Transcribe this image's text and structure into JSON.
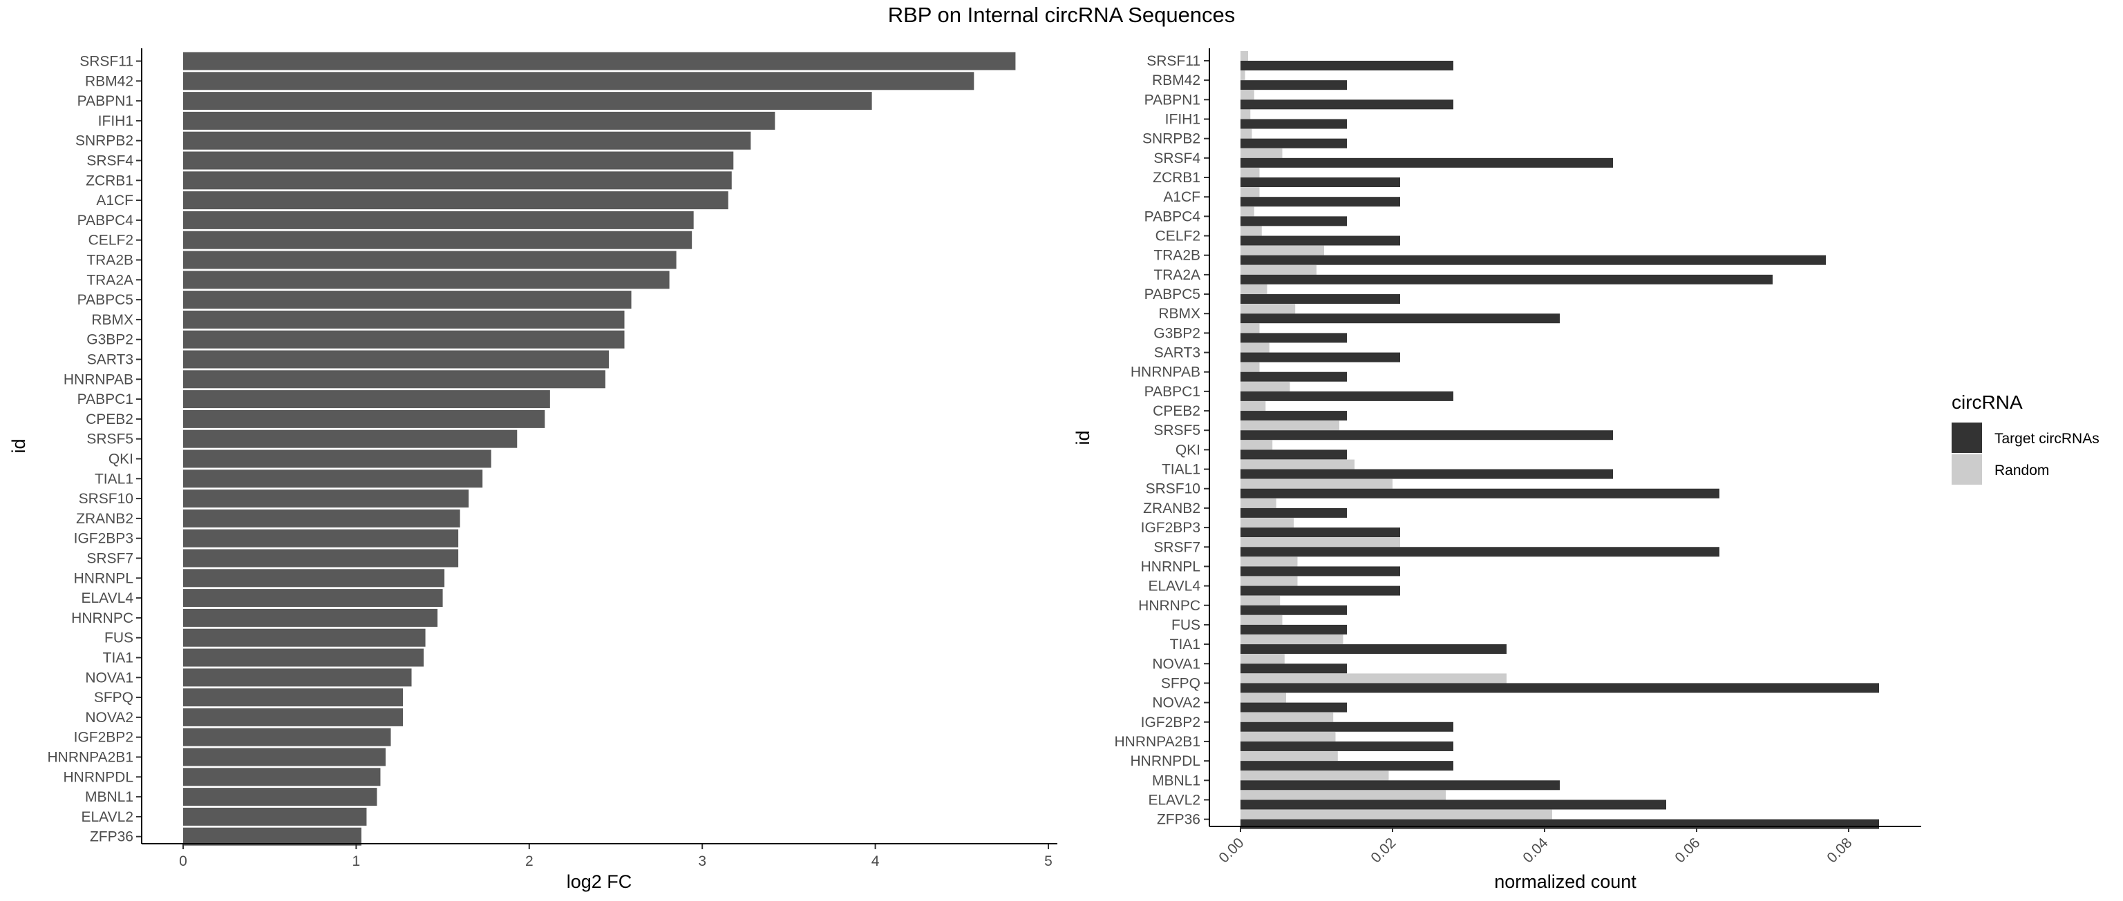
{
  "title": "RBP on Internal circRNA Sequences",
  "colors": {
    "left_bar": "#595959",
    "target": "#333333",
    "random": "#cccccc",
    "axis": "#000000",
    "tick_text": "#4d4d4d"
  },
  "chart_data": [
    {
      "type": "bar",
      "orientation": "horizontal",
      "xlabel": "log2 FC",
      "ylabel": "id",
      "xlim": [
        0,
        5
      ],
      "xticks": [
        "0",
        "1",
        "2",
        "3",
        "4",
        "5"
      ],
      "grid": false,
      "categories": [
        "SRSF11",
        "RBM42",
        "PABPN1",
        "IFIH1",
        "SNRPB2",
        "SRSF4",
        "ZCRB1",
        "A1CF",
        "PABPC4",
        "CELF2",
        "TRA2B",
        "TRA2A",
        "PABPC5",
        "RBMX",
        "G3BP2",
        "SART3",
        "HNRNPAB",
        "PABPC1",
        "CPEB2",
        "SRSF5",
        "QKI",
        "TIAL1",
        "SRSF10",
        "ZRANB2",
        "IGF2BP3",
        "SRSF7",
        "HNRNPL",
        "ELAVL4",
        "HNRNPC",
        "FUS",
        "TIA1",
        "NOVA1",
        "SFPQ",
        "NOVA2",
        "IGF2BP2",
        "HNRNPA2B1",
        "HNRNPDL",
        "MBNL1",
        "ELAVL2",
        "ZFP36"
      ],
      "values": [
        4.81,
        4.57,
        3.98,
        3.42,
        3.28,
        3.18,
        3.17,
        3.15,
        2.95,
        2.94,
        2.85,
        2.81,
        2.59,
        2.55,
        2.55,
        2.46,
        2.44,
        2.12,
        2.09,
        1.93,
        1.78,
        1.73,
        1.65,
        1.6,
        1.59,
        1.59,
        1.51,
        1.5,
        1.47,
        1.4,
        1.39,
        1.32,
        1.27,
        1.27,
        1.2,
        1.17,
        1.14,
        1.12,
        1.06,
        1.03
      ]
    },
    {
      "type": "bar",
      "orientation": "horizontal",
      "xlabel": "normalized count",
      "ylabel": "id",
      "xlim": [
        0,
        0.088
      ],
      "xticks": [
        "0.00",
        "0.02",
        "0.04",
        "0.06",
        "0.08"
      ],
      "grid": false,
      "legend": {
        "title": "circRNA",
        "placement": "right"
      },
      "categories": [
        "SRSF11",
        "RBM42",
        "PABPN1",
        "IFIH1",
        "SNRPB2",
        "SRSF4",
        "ZCRB1",
        "A1CF",
        "PABPC4",
        "CELF2",
        "TRA2B",
        "TRA2A",
        "PABPC5",
        "RBMX",
        "G3BP2",
        "SART3",
        "HNRNPAB",
        "PABPC1",
        "CPEB2",
        "SRSF5",
        "QKI",
        "TIAL1",
        "SRSF10",
        "ZRANB2",
        "IGF2BP3",
        "SRSF7",
        "HNRNPL",
        "ELAVL4",
        "HNRNPC",
        "FUS",
        "TIA1",
        "NOVA1",
        "SFPQ",
        "NOVA2",
        "IGF2BP2",
        "HNRNPA2B1",
        "HNRNPDL",
        "MBNL1",
        "ELAVL2",
        "ZFP36"
      ],
      "series": [
        {
          "name": "Target circRNAs",
          "values": [
            0.028,
            0.014,
            0.028,
            0.014,
            0.014,
            0.049,
            0.021,
            0.021,
            0.014,
            0.021,
            0.077,
            0.07,
            0.021,
            0.042,
            0.014,
            0.021,
            0.014,
            0.028,
            0.014,
            0.049,
            0.014,
            0.049,
            0.063,
            0.014,
            0.021,
            0.063,
            0.021,
            0.021,
            0.014,
            0.014,
            0.035,
            0.014,
            0.084,
            0.014,
            0.028,
            0.028,
            0.028,
            0.042,
            0.056,
            0.084
          ]
        },
        {
          "name": "Random",
          "values": [
            0.001,
            0.0006,
            0.0018,
            0.0013,
            0.0015,
            0.0055,
            0.0025,
            0.0025,
            0.0018,
            0.0028,
            0.011,
            0.01,
            0.0035,
            0.0072,
            0.0025,
            0.0038,
            0.0025,
            0.0065,
            0.0033,
            0.013,
            0.0042,
            0.015,
            0.02,
            0.0047,
            0.007,
            0.021,
            0.0075,
            0.0075,
            0.0052,
            0.0055,
            0.0135,
            0.0058,
            0.035,
            0.006,
            0.0122,
            0.0125,
            0.0128,
            0.0195,
            0.027,
            0.041
          ]
        }
      ]
    }
  ]
}
